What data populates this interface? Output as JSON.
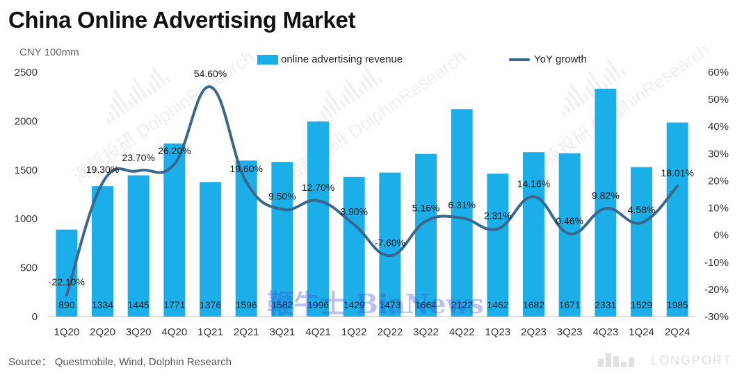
{
  "title": "China Online Advertising Market",
  "unit_label": "CNY 100mm",
  "source": "Source： Questmobile, Wind, Dolphin Research",
  "watermarks": {
    "dolphin": "海豚投研 DolphinResearch",
    "bianews": "鞭牛士 BiaNews",
    "longport": "LONGPORT"
  },
  "colors": {
    "bar": "#1baee8",
    "line": "#3a6690"
  },
  "chart_data": {
    "type": "bar+line",
    "categories": [
      "1Q20",
      "2Q20",
      "3Q20",
      "4Q20",
      "1Q21",
      "2Q21",
      "3Q21",
      "4Q21",
      "1Q22",
      "2Q22",
      "3Q22",
      "4Q22",
      "1Q23",
      "2Q23",
      "3Q23",
      "4Q23",
      "1Q24",
      "2Q24"
    ],
    "series": [
      {
        "name": "online advertising revenue",
        "type": "bar",
        "axis": "left",
        "values": [
          890,
          1334,
          1445,
          1771,
          1376,
          1596,
          1582,
          1996,
          1429,
          1473,
          1664,
          2122,
          1462,
          1682,
          1671,
          2331,
          1529,
          1985
        ],
        "labels": [
          "890",
          "1334",
          "1445",
          "1771",
          "1376",
          "1596",
          "1582",
          "1996",
          "1429",
          "1473",
          "1664",
          "2122",
          "1462",
          "1682",
          "1671",
          "2331",
          "1529",
          "1985"
        ]
      },
      {
        "name": "YoY growth",
        "type": "line",
        "axis": "right",
        "values": [
          -22.1,
          19.3,
          23.7,
          26.2,
          54.6,
          19.6,
          9.5,
          12.7,
          3.9,
          -7.6,
          5.16,
          6.31,
          2.31,
          14.16,
          0.46,
          9.82,
          4.58,
          18.01
        ],
        "labels": [
          "-22.10%",
          "19.30%",
          "23.70%",
          "26.20%",
          "54.60%",
          "19.60%",
          "9.50%",
          "12.70%",
          "3.90%",
          "-7.60%",
          "5.16%",
          "6.31%",
          "2.31%",
          "14.16%",
          "0.46%",
          "9.82%",
          "4.58%",
          "18.01%"
        ]
      }
    ],
    "y_left": {
      "min": 0,
      "max": 2500,
      "ticks": [
        0,
        500,
        1000,
        1500,
        2000,
        2500
      ],
      "tick_labels": [
        "0",
        "500",
        "1000",
        "1500",
        "2000",
        "2500"
      ]
    },
    "y_right": {
      "min": -30,
      "max": 60,
      "ticks": [
        -30,
        -20,
        -10,
        0,
        10,
        20,
        30,
        40,
        50,
        60
      ],
      "tick_labels": [
        "-30%",
        "-20%",
        "-10%",
        "0%",
        "10%",
        "20%",
        "30%",
        "40%",
        "50%",
        "60%"
      ]
    },
    "legend_position": "top",
    "grid": false
  }
}
